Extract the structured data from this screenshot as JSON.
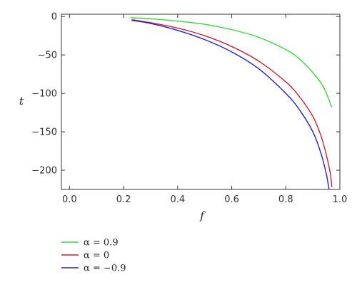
{
  "chart_data": {
    "type": "line",
    "title": "",
    "xlabel": "f",
    "ylabel": "t",
    "xlim": [
      -0.03,
      1.0
    ],
    "ylim": [
      -225,
      3
    ],
    "x_ticks": [
      0.0,
      0.2,
      0.4,
      0.6,
      0.8,
      1.0
    ],
    "x_tick_labels": [
      "0.0",
      "0.2",
      "0.4",
      "0.6",
      "0.8",
      "1.0"
    ],
    "y_ticks": [
      0,
      -50,
      -100,
      -150,
      -200
    ],
    "y_tick_labels": [
      "0",
      "−50",
      "−100",
      "−150",
      "−200"
    ],
    "grid": false,
    "legend_position": "bottom-left-outside",
    "series": [
      {
        "name": "α = 0.9",
        "color": "#33dd33",
        "points": [
          [
            0.225,
            -1.5
          ],
          [
            0.3,
            -3
          ],
          [
            0.4,
            -6
          ],
          [
            0.5,
            -10
          ],
          [
            0.6,
            -17
          ],
          [
            0.7,
            -27
          ],
          [
            0.8,
            -43
          ],
          [
            0.85,
            -55
          ],
          [
            0.9,
            -73
          ],
          [
            0.94,
            -92
          ],
          [
            0.97,
            -118
          ]
        ]
      },
      {
        "name": "α = 0",
        "color": "#cc2233",
        "points": [
          [
            0.23,
            -4
          ],
          [
            0.3,
            -8
          ],
          [
            0.4,
            -15
          ],
          [
            0.5,
            -25
          ],
          [
            0.6,
            -39
          ],
          [
            0.7,
            -58
          ],
          [
            0.8,
            -85
          ],
          [
            0.85,
            -104
          ],
          [
            0.9,
            -130
          ],
          [
            0.93,
            -155
          ],
          [
            0.95,
            -180
          ],
          [
            0.965,
            -205
          ],
          [
            0.97,
            -222
          ]
        ]
      },
      {
        "name": "α = −0.9",
        "color": "#2222cc",
        "points": [
          [
            0.23,
            -5
          ],
          [
            0.3,
            -9
          ],
          [
            0.4,
            -18
          ],
          [
            0.5,
            -30
          ],
          [
            0.6,
            -46
          ],
          [
            0.7,
            -68
          ],
          [
            0.8,
            -100
          ],
          [
            0.85,
            -121
          ],
          [
            0.9,
            -150
          ],
          [
            0.93,
            -178
          ],
          [
            0.95,
            -205
          ],
          [
            0.96,
            -225
          ]
        ]
      }
    ]
  }
}
